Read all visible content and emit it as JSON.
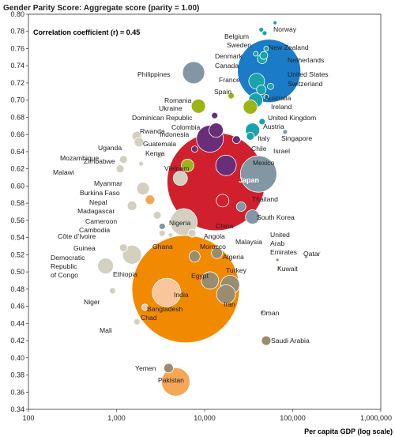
{
  "chart_data": {
    "type": "scatter",
    "title": "Gender Parity Score: Aggregate score (parity = 1.00)",
    "annotation": "Correlation coefficient (r) = 0.45",
    "xlabel": "Per capita GDP (log scale)",
    "ylabel": "",
    "xscale": "log",
    "xlim": [
      100,
      1000000
    ],
    "ylim": [
      0.34,
      0.8
    ],
    "xticks": [
      100,
      1000,
      10000,
      100000,
      1000000
    ],
    "xtick_labels": [
      "100",
      "1,000",
      "10,000",
      "100,000",
      "1,000,000"
    ],
    "yticks": [
      0.34,
      0.36,
      0.38,
      0.4,
      0.42,
      0.44,
      0.46,
      0.48,
      0.5,
      0.52,
      0.54,
      0.56,
      0.58,
      0.6,
      0.62,
      0.64,
      0.66,
      0.68,
      0.7,
      0.72,
      0.74,
      0.76,
      0.78,
      0.8
    ],
    "ytick_labels": [
      "0.34",
      "0.36",
      "0.38",
      "0.40",
      "0.42",
      "0.44",
      "0.46",
      "0.48",
      "0.50",
      "0.52",
      "0.54",
      "0.56",
      "0.58",
      "0.60",
      "0.62",
      "0.64",
      "0.66",
      "0.68",
      "0.70",
      "0.72",
      "0.74",
      "0.76",
      "0.78",
      "0.80"
    ],
    "grid": false,
    "legend": "none",
    "points": [
      {
        "name": "India",
        "x": 6100,
        "y": 0.48,
        "r": 68,
        "color": "#f28a00"
      },
      {
        "name": "China",
        "x": 13500,
        "y": 0.605,
        "r": 62,
        "color": "#d0202d"
      },
      {
        "name": "Philippines",
        "x": 7500,
        "y": 0.732,
        "r": 14,
        "color": "#8297a3"
      },
      {
        "name": "Norway",
        "x": 63000,
        "y": 0.79,
        "r": 2.5,
        "color": "#1aa3ac"
      },
      {
        "name": "Belgium",
        "x": 44000,
        "y": 0.782,
        "r": 3,
        "color": "#1aa3ac"
      },
      {
        "name": "Sweden",
        "x": 48000,
        "y": 0.778,
        "r": 3,
        "color": "#1aa3ac"
      },
      {
        "name": "New Zealand",
        "x": 38000,
        "y": 0.754,
        "r": 3,
        "color": "#1aa3ac"
      },
      {
        "name": "Denmark",
        "x": 50000,
        "y": 0.76,
        "r": 3,
        "color": "#1aa3ac"
      },
      {
        "name": "Canada",
        "x": 45000,
        "y": 0.748,
        "r": 6,
        "color": "#1aa3ac"
      },
      {
        "name": "Netherlands",
        "x": 47000,
        "y": 0.752,
        "r": 5,
        "color": "#1aa3ac"
      },
      {
        "name": "United States",
        "x": 54000,
        "y": 0.734,
        "r": 40,
        "color": "#1a7cc8"
      },
      {
        "name": "France",
        "x": 39000,
        "y": 0.722,
        "r": 10,
        "color": "#1aa3ac"
      },
      {
        "name": "Switzerland",
        "x": 56000,
        "y": 0.716,
        "r": 4,
        "color": "#1aa3ac"
      },
      {
        "name": "Australia",
        "x": 44000,
        "y": 0.712,
        "r": 6,
        "color": "#1aa3ac"
      },
      {
        "name": "Ireland",
        "x": 50000,
        "y": 0.704,
        "r": 3,
        "color": "#1aa3ac"
      },
      {
        "name": "United Kingdom",
        "x": 38000,
        "y": 0.7,
        "r": 9,
        "color": "#1aa3ac"
      },
      {
        "name": "Austria",
        "x": 45000,
        "y": 0.675,
        "r": 4,
        "color": "#1aa3ac"
      },
      {
        "name": "Italy",
        "x": 35000,
        "y": 0.665,
        "r": 9,
        "color": "#1aa3ac"
      },
      {
        "name": "Singapore",
        "x": 82000,
        "y": 0.663,
        "r": 3,
        "color": "#8297a3"
      },
      {
        "name": "Spain",
        "x": 33000,
        "y": 0.692,
        "r": 9,
        "color": "#9cb415"
      },
      {
        "name": "Romania",
        "x": 20000,
        "y": 0.705,
        "r": 4,
        "color": "#9cb415"
      },
      {
        "name": "Ukraine",
        "x": 8500,
        "y": 0.693,
        "r": 9,
        "color": "#9cb415"
      },
      {
        "name": "Dominican Republic",
        "x": 13000,
        "y": 0.682,
        "r": 4,
        "color": "#6a2d78"
      },
      {
        "name": "Colombia",
        "x": 13500,
        "y": 0.665,
        "r": 9,
        "color": "#6a2d78"
      },
      {
        "name": "Indonesia",
        "x": 11500,
        "y": 0.655,
        "r": 17,
        "color": "#6a2d78"
      },
      {
        "name": "Guatemala",
        "x": 7700,
        "y": 0.643,
        "r": 4,
        "color": "#6a2d78"
      },
      {
        "name": "Kenya",
        "x": 3100,
        "y": 0.636,
        "r": 4,
        "color": "#d4d0bf"
      },
      {
        "name": "Vietnam",
        "x": 6400,
        "y": 0.624,
        "r": 8,
        "color": "#9cb415"
      },
      {
        "name": "Mexico",
        "x": 17500,
        "y": 0.624,
        "r": 13,
        "color": "#6a2d78"
      },
      {
        "name": "Chile",
        "x": 23000,
        "y": 0.654,
        "r": 5,
        "color": "#6a2d78"
      },
      {
        "name": "Israel",
        "x": 33000,
        "y": 0.658,
        "r": 5,
        "color": "#1aa3ac"
      },
      {
        "name": "Japan",
        "x": 41000,
        "y": 0.614,
        "r": 23,
        "color": "#8297a3"
      },
      {
        "name": "Thailand",
        "x": 16000,
        "y": 0.583,
        "r": 8,
        "color": "#d0202d"
      },
      {
        "name": "South Korea",
        "x": 35000,
        "y": 0.564,
        "r": 9,
        "color": "#8297a3"
      },
      {
        "name": "Malaysia",
        "x": 26000,
        "y": 0.576,
        "r": 6,
        "color": "#8297a3"
      },
      {
        "name": "Rwanda",
        "x": 1700,
        "y": 0.658,
        "r": 6,
        "color": "#d4d0bf"
      },
      {
        "name": "Uganda",
        "x": 1800,
        "y": 0.651,
        "r": 6,
        "color": "#d4d0bf"
      },
      {
        "name": "Mozambique",
        "x": 1200,
        "y": 0.631,
        "r": 5,
        "color": "#d4d0bf"
      },
      {
        "name": "Zimbabwe",
        "x": 1900,
        "y": 0.626,
        "r": 3,
        "color": "#d4d0bf"
      },
      {
        "name": "Malawi",
        "x": 1100,
        "y": 0.62,
        "r": 5,
        "color": "#d4d0bf"
      },
      {
        "name": "Myanmar",
        "x": 5300,
        "y": 0.609,
        "r": 9,
        "color": "#d4d0bf"
      },
      {
        "name": "Burkina Faso",
        "x": 2000,
        "y": 0.597,
        "r": 8,
        "color": "#d4d0bf"
      },
      {
        "name": "Nepal",
        "x": 2400,
        "y": 0.584,
        "r": 6,
        "color": "#f5a657"
      },
      {
        "name": "Madagascar",
        "x": 1500,
        "y": 0.577,
        "r": 6,
        "color": "#d4d0bf"
      },
      {
        "name": "Cameroon",
        "x": 2900,
        "y": 0.566,
        "r": 5,
        "color": "#d4d0bf"
      },
      {
        "name": "Cambodia",
        "x": 3300,
        "y": 0.553,
        "r": 4,
        "color": "#8297a3"
      },
      {
        "name": "Côte d’Ivoire",
        "x": 3300,
        "y": 0.545,
        "r": 4,
        "color": "#d4d0bf"
      },
      {
        "name": "Nigeria",
        "x": 5800,
        "y": 0.558,
        "r": 17,
        "color": "#d4d0bf"
      },
      {
        "name": "Angola",
        "x": 7200,
        "y": 0.545,
        "r": 5,
        "color": "#d4d0bf"
      },
      {
        "name": "Ghana",
        "x": 4100,
        "y": 0.543,
        "r": 3,
        "color": "#d4d0bf"
      },
      {
        "name": "Guinea",
        "x": 1200,
        "y": 0.528,
        "r": 5,
        "color": "#d4d0bf"
      },
      {
        "name": "Democratic Republic of Congo",
        "x": 750,
        "y": 0.507,
        "r": 10,
        "color": "#d4d0bf"
      },
      {
        "name": "Ethiopia",
        "x": 1500,
        "y": 0.52,
        "r": 12,
        "color": "#d4d0bf"
      },
      {
        "name": "Morocco",
        "x": 7700,
        "y": 0.518,
        "r": 7,
        "color": "#9a8c6e"
      },
      {
        "name": "Algeria",
        "x": 13800,
        "y": 0.522,
        "r": 7,
        "color": "#9a8c6e"
      },
      {
        "name": "Egypt",
        "x": 11500,
        "y": 0.49,
        "r": 11,
        "color": "#9a8c6e"
      },
      {
        "name": "Turkey",
        "x": 19500,
        "y": 0.485,
        "r": 12,
        "color": "#9a8c6e"
      },
      {
        "name": "Iran",
        "x": 17500,
        "y": 0.474,
        "r": 12,
        "color": "#9a8c6e"
      },
      {
        "name": "Niger",
        "x": 900,
        "y": 0.478,
        "r": 4,
        "color": "#d4d0bf"
      },
      {
        "name": "Bangladesh",
        "x": 3700,
        "y": 0.476,
        "r": 18,
        "color": "#f9c59a"
      },
      {
        "name": "Chad",
        "x": 2100,
        "y": 0.459,
        "r": 4,
        "color": "#d4d0bf"
      },
      {
        "name": "Mali",
        "x": 1700,
        "y": 0.442,
        "r": 4,
        "color": "#d4d0bf"
      },
      {
        "name": "United Arab Emirates",
        "x": 67000,
        "y": 0.514,
        "r": 2,
        "color": "#9a8c6e"
      },
      {
        "name": "Qatar",
        "x": 140000,
        "y": 0.517,
        "r": 1.5,
        "color": "#9a8c6e"
      },
      {
        "name": "Kuwait",
        "x": 70000,
        "y": 0.505,
        "r": 1.5,
        "color": "#9a8c6e"
      },
      {
        "name": "Oman",
        "x": 45000,
        "y": 0.453,
        "r": 2,
        "color": "#9a8c6e"
      },
      {
        "name": "Saudi Arabia",
        "x": 50000,
        "y": 0.42,
        "r": 6,
        "color": "#9a8c6e"
      },
      {
        "name": "Yemen",
        "x": 3900,
        "y": 0.388,
        "r": 6,
        "color": "#9a8c6e"
      },
      {
        "name": "Pakistan",
        "x": 4700,
        "y": 0.372,
        "r": 18,
        "color": "#f5a657"
      }
    ]
  }
}
